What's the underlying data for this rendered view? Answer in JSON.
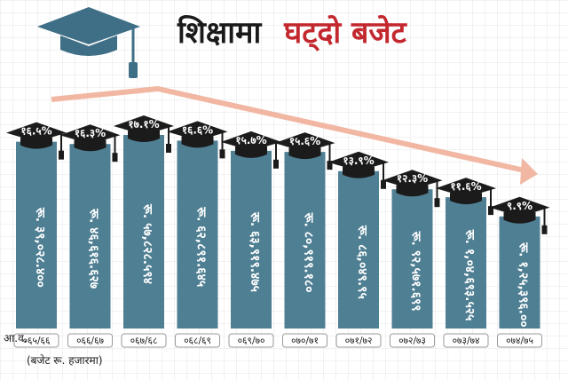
{
  "title": {
    "part1": "शिक्षामा",
    "part2": "घट्दो बजेट"
  },
  "colors": {
    "bar": "#4f7f93",
    "cap": "#1b1b1b",
    "arrow": "#f1b7a2",
    "title_red": "#c3282e",
    "title_dark": "#1a1a1a",
    "icon": "#3f6f86",
    "grid": "#e6e6e6"
  },
  "icons": {
    "header": "graduation-cap-icon",
    "bar_cap": "graduation-cap-icon",
    "trend": "arrow-right-icon"
  },
  "chart_data": {
    "type": "bar",
    "title": "शिक्षामा घट्दो बजेट",
    "x_prefix": "आ.व.",
    "categories": [
      "०६५/६६",
      "०६६/६७",
      "०६७/६८",
      "०६८/६९",
      "०६९/७०",
      "०७०/७१",
      "०७१/७२",
      "०७२/७३",
      "०७३/७४",
      "०७४/७५"
    ],
    "percent_labels": [
      "१६.५%",
      "१६.३%",
      "१७.१%",
      "१६.६%",
      "१५.७%",
      "१५.६%",
      "१३.९%",
      "१२.३%",
      "११.६%",
      "९.९%"
    ],
    "values": [
      16.5,
      16.3,
      17.1,
      16.6,
      15.7,
      15.6,
      13.9,
      12.3,
      11.6,
      9.9
    ],
    "amount_labels": [
      "रू. ३९,०२८.४००",
      "रू. ४६,६१६.६२७",
      "रू. ५७,८२८.५९४",
      "रू. ६२,८९१.६४५",
      "रू. ६३,९१९.४७५",
      "रू. ८०,९१९.१८०",
      "रू. ८६,०४९.९५",
      "रू. ९२,५७१.६९९",
      "रू. १,०४,६९३.५२५",
      "रू. १,२५,३९६.००"
    ],
    "ylim": [
      0,
      20
    ],
    "grid": true,
    "unit_note": "(बजेट रू. हजारमा)"
  }
}
